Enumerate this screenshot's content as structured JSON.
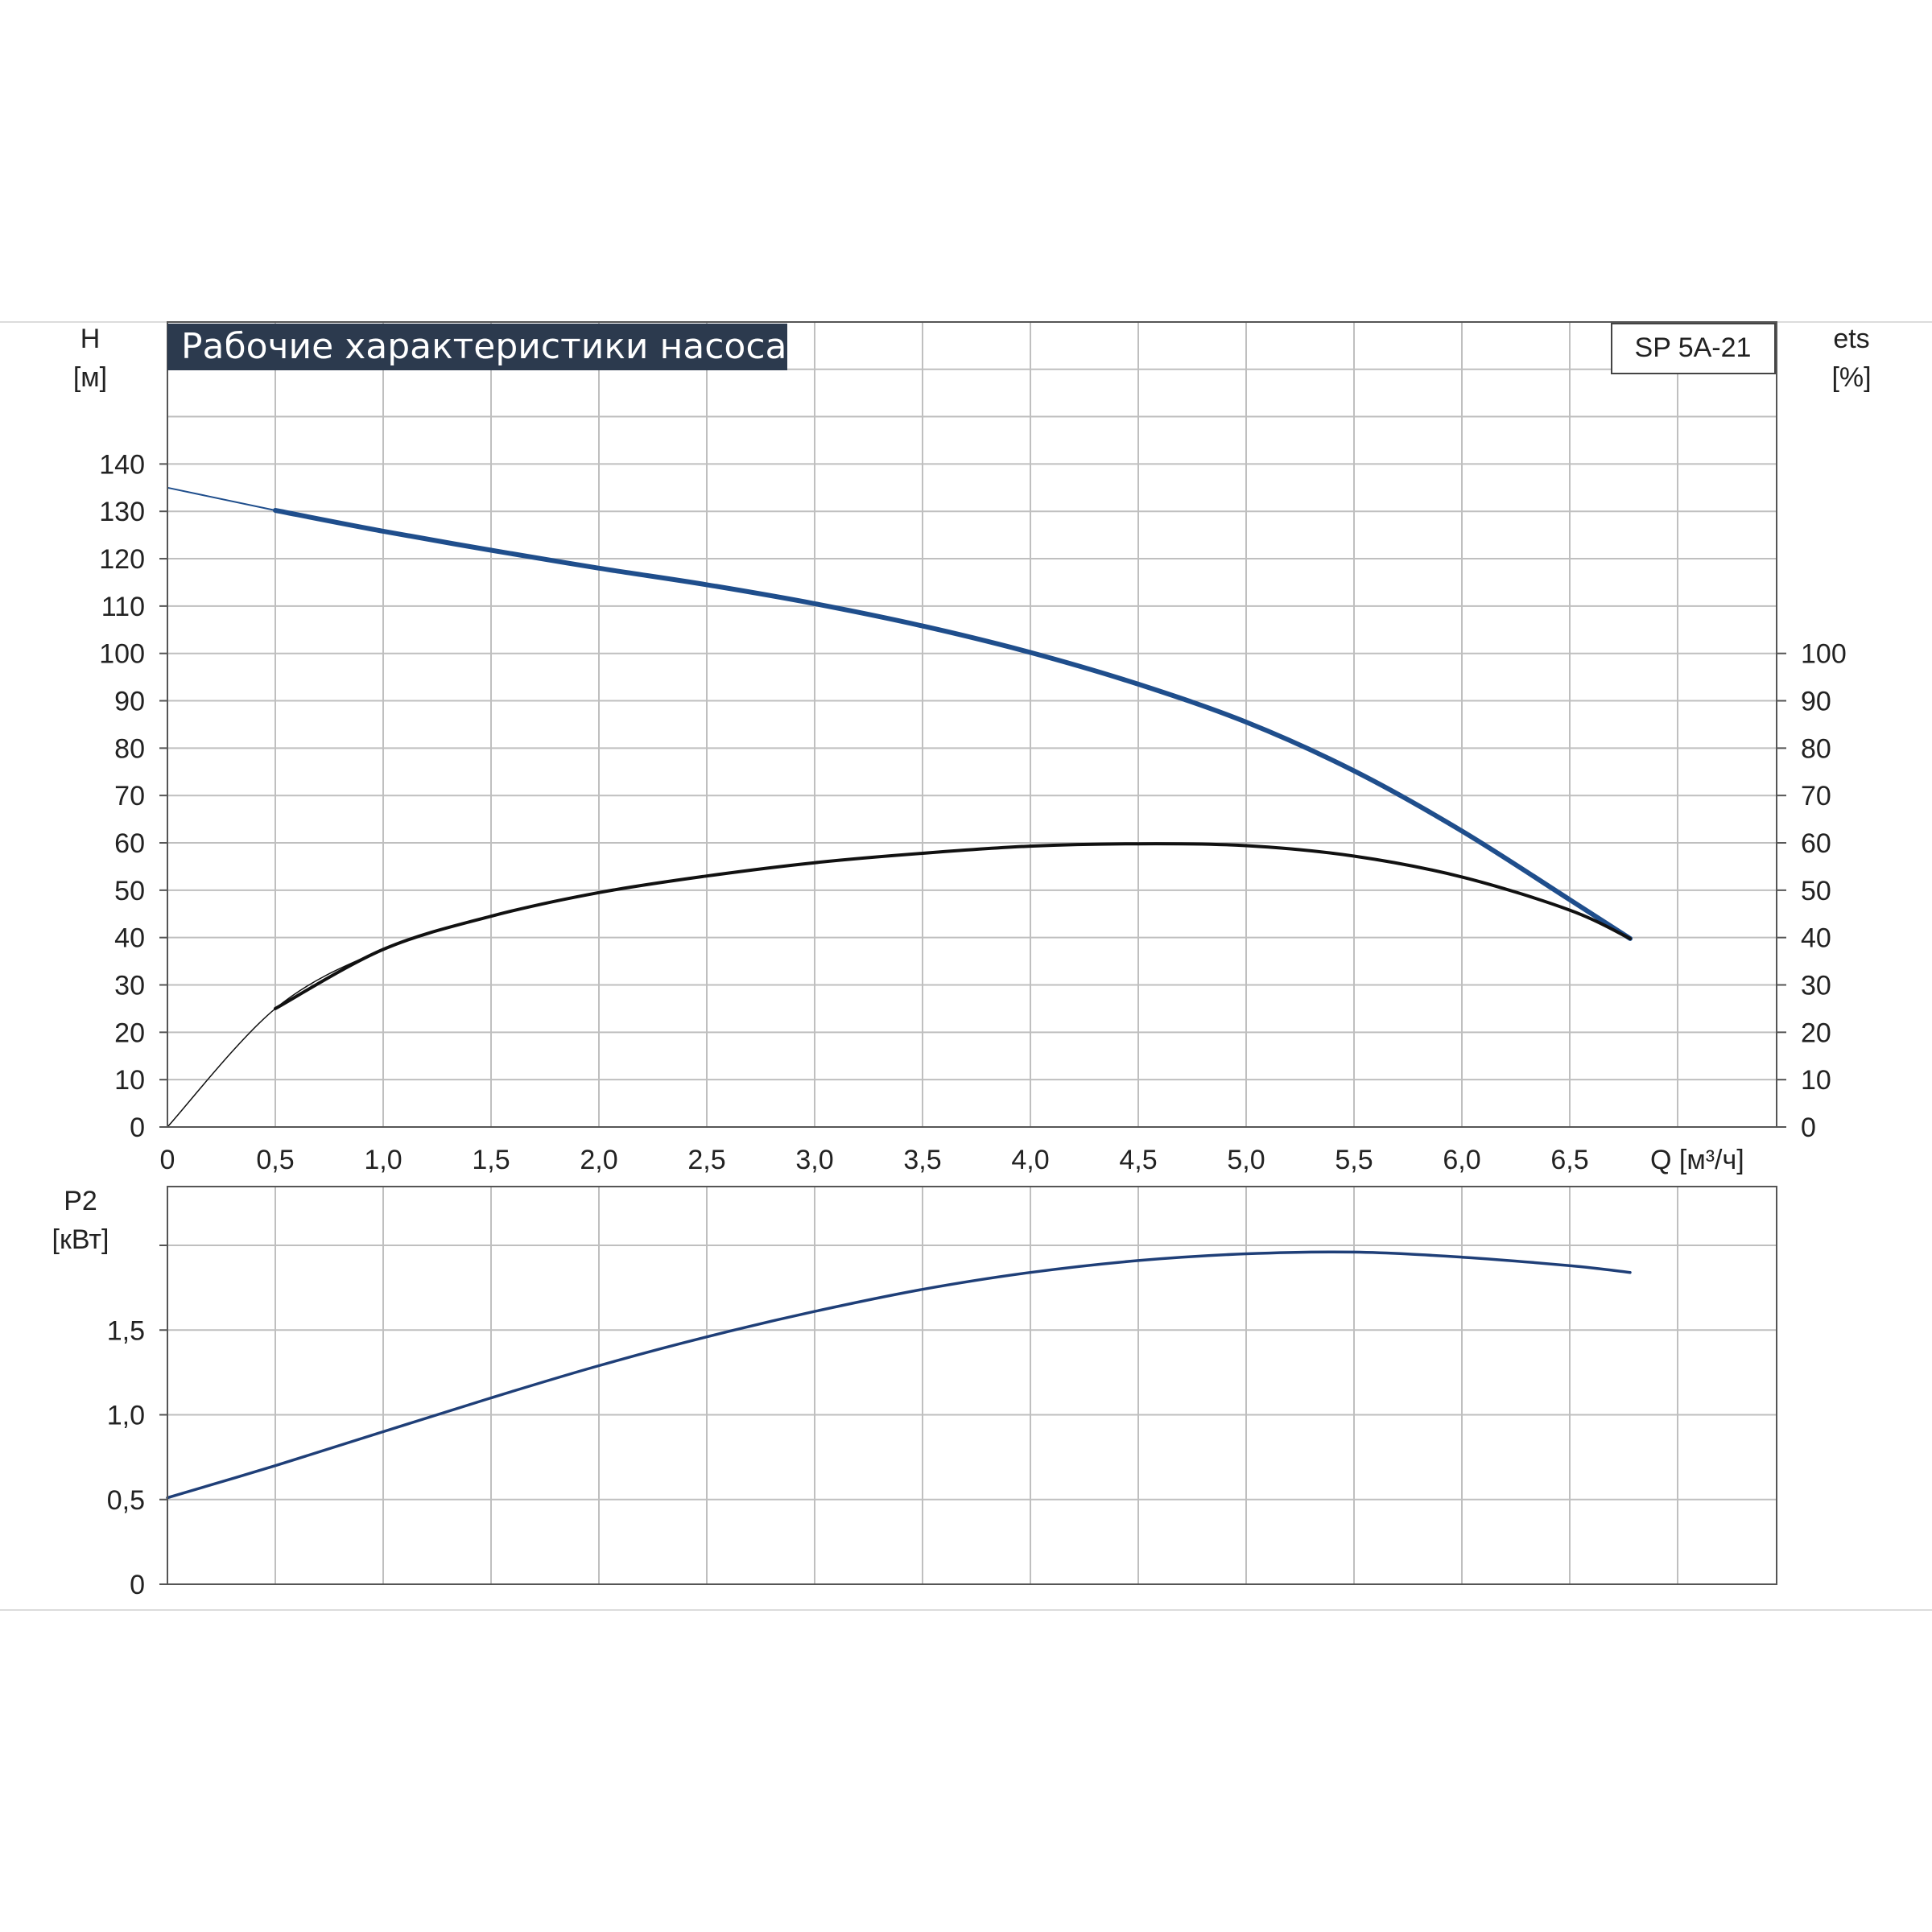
{
  "colors": {
    "head_curve": "#1f4e8c",
    "eff_curve": "#111111",
    "power_curve": "#1f3f78",
    "grid": "#bfbfbf",
    "axis": "#555555",
    "title_bg": "#2c3a4e",
    "title_fg": "#ffffff"
  },
  "chart_data": [
    {
      "type": "line",
      "title": "Рабочие характеристики насоса",
      "model_label": "SP 5A-21",
      "ylabel_left_name": "H",
      "ylabel_left_unit": "[м]",
      "ylabel_right_name": "ets",
      "ylabel_right_unit": "[%]",
      "xlabel": "Q [м³/ч]",
      "x_tick_labels": [
        "0",
        "0,5",
        "1,0",
        "1,5",
        "2,0",
        "2,5",
        "3,0",
        "3,5",
        "4,0",
        "4,5",
        "5,0",
        "5,5",
        "6,0",
        "6,5"
      ],
      "x_ticks": [
        0,
        0.5,
        1.0,
        1.5,
        2.0,
        2.5,
        3.0,
        3.5,
        4.0,
        4.5,
        5.0,
        5.5,
        6.0,
        6.5
      ],
      "xlim": [
        0,
        7.45
      ],
      "y_left_ticks": [
        0,
        10,
        20,
        30,
        40,
        50,
        60,
        70,
        80,
        90,
        100,
        110,
        120,
        130,
        140
      ],
      "y_left_tick_labels": [
        "0",
        "10",
        "20",
        "30",
        "40",
        "50",
        "60",
        "70",
        "80",
        "90",
        "100",
        "110",
        "120",
        "130",
        "140"
      ],
      "y_right_ticks": [
        0,
        10,
        20,
        30,
        40,
        50,
        60,
        70,
        80,
        90,
        100
      ],
      "y_right_tick_labels": [
        "0",
        "10",
        "20",
        "30",
        "40",
        "50",
        "60",
        "70",
        "80",
        "90",
        "100"
      ],
      "ylim": [
        0,
        170
      ],
      "grid": true,
      "series": [
        {
          "key": "head",
          "x": [
            0,
            0.5,
            1.0,
            1.5,
            2.0,
            2.5,
            3.0,
            3.5,
            4.0,
            4.5,
            5.0,
            5.5,
            6.0,
            6.5,
            6.78
          ],
          "values": [
            135,
            130.2,
            125.8,
            121.8,
            118,
            114.5,
            110.5,
            105.8,
            100.2,
            93.5,
            85.5,
            75.2,
            62.5,
            48,
            39.8
          ]
        },
        {
          "key": "efficiency",
          "x": [
            0,
            0.5,
            1.0,
            1.5,
            2.0,
            2.5,
            3.0,
            3.5,
            4.0,
            4.5,
            5.0,
            5.5,
            6.0,
            6.5,
            6.78
          ],
          "values": [
            0,
            25,
            37.5,
            44.5,
            49.5,
            53,
            55.8,
            57.8,
            59.3,
            59.8,
            59.4,
            57.2,
            52.8,
            45.8,
            39.8
          ]
        }
      ]
    },
    {
      "type": "line",
      "ylabel_name": "P2",
      "ylabel_unit": "[кВт]",
      "y_ticks": [
        0,
        0.5,
        1.0,
        1.5,
        2.0
      ],
      "y_tick_labels": [
        "0",
        "0,5",
        "1,0",
        "1,5",
        ""
      ],
      "x_ticks": [
        0,
        0.5,
        1.0,
        1.5,
        2.0,
        2.5,
        3.0,
        3.5,
        4.0,
        4.5,
        5.0,
        5.5,
        6.0,
        6.5,
        7.0
      ],
      "xlim": [
        0,
        7.45
      ],
      "ylim": [
        0,
        2.35
      ],
      "grid": true,
      "series": [
        {
          "key": "power",
          "x": [
            0,
            0.5,
            1.0,
            1.5,
            2.0,
            2.5,
            3.0,
            3.5,
            4.0,
            4.5,
            5.0,
            5.5,
            6.0,
            6.5,
            6.78
          ],
          "values": [
            0.51,
            0.7,
            0.9,
            1.1,
            1.29,
            1.46,
            1.61,
            1.74,
            1.84,
            1.91,
            1.95,
            1.96,
            1.93,
            1.88,
            1.84
          ]
        }
      ]
    }
  ]
}
